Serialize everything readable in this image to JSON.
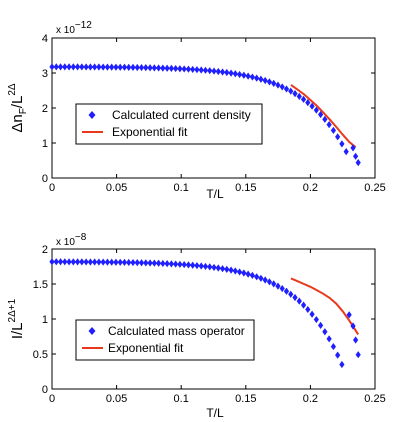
{
  "chart_data": [
    {
      "type": "scatter",
      "xlabel": "T/L",
      "ylabel_main": "Δn",
      "ylabel_sub": "F",
      "ylabel_mid": "/L",
      "ylabel_sup": "2Δ",
      "y_exponent_base": "x 10",
      "y_exponent_power": "−12",
      "xlim": [
        0,
        0.25
      ],
      "ylim": [
        0,
        4
      ],
      "x_ticks": [
        "0",
        "0.05",
        "0.1",
        "0.15",
        "0.2",
        "0.25"
      ],
      "y_ticks": [
        "0",
        "1",
        "2",
        "3",
        "4"
      ],
      "legend_placement": "center-left",
      "series": [
        {
          "name": "Calculated current density",
          "marker": "diamond",
          "color": "#1f1fff",
          "model": {
            "a": 3.18,
            "b": 0.0033,
            "c": 0.245
          },
          "x_start": 0.0,
          "x_end": 0.23,
          "x_step": 0.0033,
          "extra_points": [
            [
              0.233,
              0.86
            ],
            [
              0.235,
              0.62
            ],
            [
              0.237,
              0.44
            ]
          ]
        },
        {
          "name": "Exponential fit",
          "type": "line",
          "color": "#e8391d",
          "x": [
            0.185,
            0.19,
            0.195,
            0.2,
            0.205,
            0.21,
            0.215,
            0.22,
            0.225,
            0.23,
            0.235
          ],
          "y": [
            2.66,
            2.53,
            2.39,
            2.23,
            2.06,
            1.87,
            1.67,
            1.46,
            1.24,
            1.03,
            0.88
          ]
        }
      ]
    },
    {
      "type": "scatter",
      "xlabel": "T/L",
      "ylabel_main": "I/L",
      "ylabel_sup": "2Δ+1",
      "y_exponent_base": "x 10",
      "y_exponent_power": "−8",
      "xlim": [
        0,
        0.25
      ],
      "ylim": [
        0,
        2
      ],
      "x_ticks": [
        "0",
        "0.05",
        "0.1",
        "0.15",
        "0.2",
        "0.25"
      ],
      "y_ticks": [
        "0",
        "0.5",
        "1",
        "1.5",
        "2"
      ],
      "legend_placement": "bottom-left",
      "series": [
        {
          "name": "Calculated mass operator",
          "marker": "diamond",
          "color": "#1f1fff",
          "model": {
            "a": 1.82,
            "b": 0.0022,
            "c": 0.252
          },
          "x_start": 0.0,
          "x_end": 0.226,
          "x_step": 0.0033,
          "extra_points": [
            [
              0.23,
              1.06
            ],
            [
              0.233,
              0.9
            ],
            [
              0.235,
              0.7
            ],
            [
              0.237,
              0.49
            ]
          ]
        },
        {
          "name": "Exponential fit",
          "type": "line",
          "color": "#e8391d",
          "x": [
            0.185,
            0.19,
            0.195,
            0.2,
            0.205,
            0.21,
            0.215,
            0.22,
            0.225,
            0.23,
            0.237
          ],
          "y": [
            1.58,
            1.54,
            1.5,
            1.46,
            1.41,
            1.36,
            1.3,
            1.22,
            1.11,
            0.98,
            0.78
          ]
        }
      ]
    }
  ]
}
